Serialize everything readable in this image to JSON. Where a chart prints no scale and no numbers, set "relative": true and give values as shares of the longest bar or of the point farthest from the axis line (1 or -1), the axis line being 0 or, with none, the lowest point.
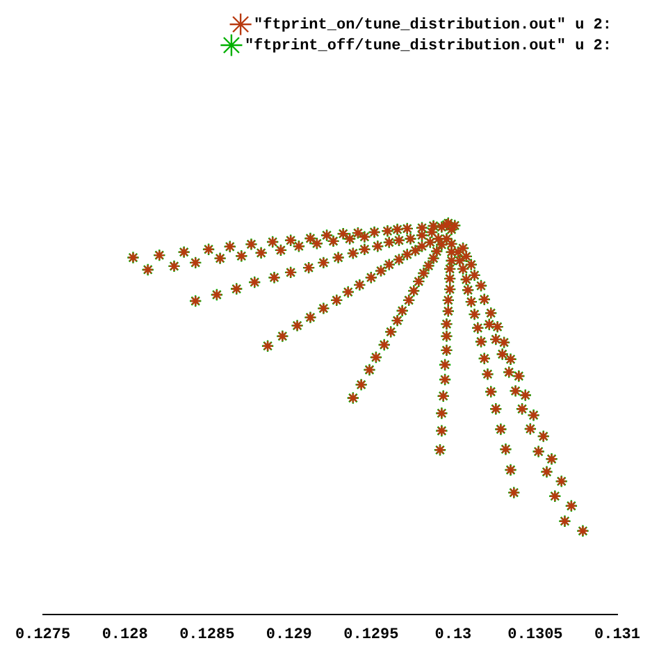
{
  "chart_data": {
    "type": "scatter",
    "relative": true,
    "marker": "cross",
    "legend": "top right",
    "grid": false,
    "xlim": [
      0.1275,
      0.131
    ],
    "xticks": [
      0.1275,
      0.128,
      0.1285,
      0.129,
      0.1295,
      0.13,
      0.1305,
      0.131
    ],
    "x": [
      0.12805,
      0.12814,
      0.12821,
      0.1283,
      0.12836,
      0.12843,
      0.12851,
      0.12858,
      0.12864,
      0.12871,
      0.12877,
      0.12883,
      0.1289,
      0.12895,
      0.12901,
      0.12906,
      0.12913,
      0.12917,
      0.12923,
      0.12927,
      0.12933,
      0.12937,
      0.12942,
      0.12946,
      0.12952,
      0.1296,
      0.12966,
      0.12972,
      0.12981,
      0.12988,
      0.12996,
      0.12843,
      0.12856,
      0.12868,
      0.12879,
      0.12891,
      0.12901,
      0.12912,
      0.12921,
      0.1293,
      0.12939,
      0.12946,
      0.12954,
      0.12961,
      0.12967,
      0.12974,
      0.12981,
      0.12987,
      0.12887,
      0.12896,
      0.12905,
      0.12913,
      0.12921,
      0.12929,
      0.12936,
      0.12943,
      0.1295,
      0.12956,
      0.12961,
      0.12967,
      0.12972,
      0.12977,
      0.12981,
      0.12986,
      0.12991,
      0.12939,
      0.12944,
      0.12949,
      0.12953,
      0.12958,
      0.12962,
      0.12966,
      0.12969,
      0.12973,
      0.12976,
      0.12979,
      0.12982,
      0.12985,
      0.12988,
      0.1299,
      0.12993,
      0.12996,
      0.12992,
      0.12993,
      0.12993,
      0.12994,
      0.12995,
      0.12995,
      0.12996,
      0.12996,
      0.12996,
      0.12997,
      0.12997,
      0.12998,
      0.12998,
      0.12998,
      0.12999,
      0.12999,
      0.12999,
      0.13037,
      0.13035,
      0.13032,
      0.13029,
      0.13026,
      0.13023,
      0.13021,
      0.13019,
      0.13017,
      0.13015,
      0.13013,
      0.13011,
      0.13009,
      0.13008,
      0.13006,
      0.13004,
      0.13003,
      0.13079,
      0.13068,
      0.13072,
      0.13062,
      0.13066,
      0.13057,
      0.1306,
      0.13052,
      0.13055,
      0.13047,
      0.13049,
      0.13042,
      0.13044,
      0.13038,
      0.1304,
      0.13034,
      0.13035,
      0.1303,
      0.13031,
      0.13026,
      0.13027,
      0.13022,
      0.13023,
      0.13019,
      0.13017,
      0.13013,
      0.13011,
      0.13008,
      0.13006,
      0.12993,
      0.12997,
      0.13001,
      0.12999
    ],
    "series": [
      {
        "name": "\"ftprint_on/tune_distribution.out\" u 2:",
        "color": "#b83a10",
        "values": [
          0.912,
          0.881,
          0.918,
          0.89,
          0.926,
          0.899,
          0.933,
          0.91,
          0.94,
          0.916,
          0.946,
          0.924,
          0.952,
          0.931,
          0.956,
          0.941,
          0.961,
          0.948,
          0.969,
          0.954,
          0.973,
          0.96,
          0.975,
          0.965,
          0.977,
          0.98,
          0.984,
          0.986,
          0.988,
          0.993,
          0.996,
          0.801,
          0.817,
          0.832,
          0.849,
          0.861,
          0.874,
          0.886,
          0.899,
          0.912,
          0.923,
          0.933,
          0.941,
          0.951,
          0.956,
          0.96,
          0.969,
          0.977,
          0.686,
          0.711,
          0.738,
          0.759,
          0.782,
          0.803,
          0.824,
          0.842,
          0.861,
          0.878,
          0.894,
          0.907,
          0.92,
          0.93,
          0.941,
          0.951,
          0.96,
          0.553,
          0.587,
          0.625,
          0.657,
          0.689,
          0.722,
          0.751,
          0.776,
          0.803,
          0.827,
          0.851,
          0.872,
          0.891,
          0.91,
          0.928,
          0.945,
          0.96,
          0.42,
          0.469,
          0.514,
          0.558,
          0.6,
          0.638,
          0.675,
          0.711,
          0.742,
          0.775,
          0.803,
          0.831,
          0.858,
          0.883,
          0.904,
          0.926,
          0.947,
          0.311,
          0.369,
          0.422,
          0.473,
          0.525,
          0.569,
          0.614,
          0.654,
          0.697,
          0.732,
          0.767,
          0.799,
          0.829,
          0.856,
          0.883,
          0.904,
          0.926,
          0.213,
          0.238,
          0.277,
          0.302,
          0.34,
          0.364,
          0.397,
          0.416,
          0.455,
          0.474,
          0.509,
          0.525,
          0.56,
          0.571,
          0.609,
          0.619,
          0.652,
          0.665,
          0.695,
          0.703,
          0.735,
          0.741,
          0.77,
          0.805,
          0.84,
          0.867,
          0.894,
          0.915,
          0.936,
          0.99,
          1,
          0.994,
          0.984
        ]
      },
      {
        "name": "\"ftprint_off/tune_distribution.out\" u 2:",
        "color": "#00b000",
        "values": [
          0.912,
          0.881,
          0.918,
          0.89,
          0.926,
          0.899,
          0.933,
          0.91,
          0.94,
          0.916,
          0.946,
          0.924,
          0.952,
          0.931,
          0.956,
          0.941,
          0.961,
          0.948,
          0.969,
          0.954,
          0.973,
          0.96,
          0.975,
          0.965,
          0.977,
          0.98,
          0.984,
          0.986,
          0.988,
          0.993,
          0.996,
          0.801,
          0.817,
          0.832,
          0.849,
          0.861,
          0.874,
          0.886,
          0.899,
          0.912,
          0.923,
          0.933,
          0.941,
          0.951,
          0.956,
          0.96,
          0.969,
          0.977,
          0.686,
          0.711,
          0.738,
          0.759,
          0.782,
          0.803,
          0.824,
          0.842,
          0.861,
          0.878,
          0.894,
          0.907,
          0.92,
          0.93,
          0.941,
          0.951,
          0.96,
          0.553,
          0.587,
          0.625,
          0.657,
          0.689,
          0.722,
          0.751,
          0.776,
          0.803,
          0.827,
          0.851,
          0.872,
          0.891,
          0.91,
          0.928,
          0.945,
          0.96,
          0.42,
          0.469,
          0.514,
          0.558,
          0.6,
          0.638,
          0.675,
          0.711,
          0.742,
          0.775,
          0.803,
          0.831,
          0.858,
          0.883,
          0.904,
          0.926,
          0.947,
          0.311,
          0.369,
          0.422,
          0.473,
          0.525,
          0.569,
          0.614,
          0.654,
          0.697,
          0.732,
          0.767,
          0.799,
          0.829,
          0.856,
          0.883,
          0.904,
          0.926,
          0.213,
          0.238,
          0.277,
          0.302,
          0.34,
          0.364,
          0.397,
          0.416,
          0.455,
          0.474,
          0.509,
          0.525,
          0.56,
          0.571,
          0.609,
          0.619,
          0.652,
          0.665,
          0.695,
          0.703,
          0.735,
          0.741,
          0.77,
          0.805,
          0.84,
          0.867,
          0.894,
          0.915,
          0.936,
          0.99,
          1,
          0.994,
          0.984
        ]
      }
    ]
  }
}
